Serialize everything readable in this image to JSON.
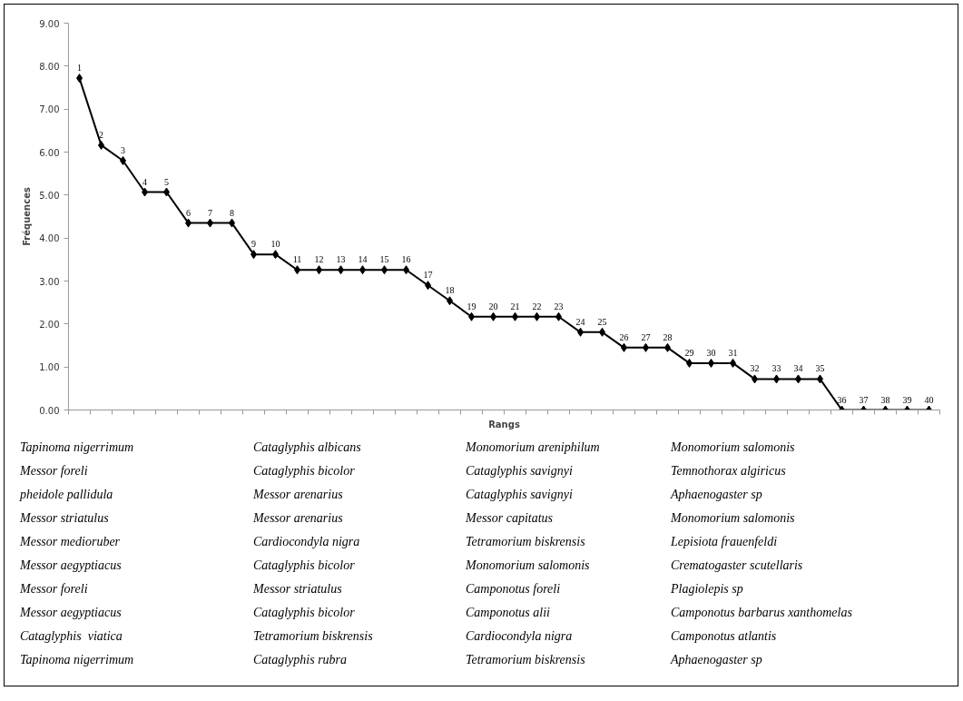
{
  "chart_data": {
    "type": "line",
    "xlabel": "Rangs",
    "ylabel": "Fréquences",
    "categories": [
      "1",
      "2",
      "3",
      "4",
      "5",
      "6",
      "7",
      "8",
      "9",
      "10",
      "11",
      "12",
      "13",
      "14",
      "15",
      "16",
      "17",
      "18",
      "19",
      "20",
      "21",
      "22",
      "23",
      "24",
      "25",
      "26",
      "27",
      "28",
      "29",
      "30",
      "31",
      "32",
      "33",
      "34",
      "35",
      "36",
      "37",
      "38",
      "39",
      "40"
    ],
    "series": [
      {
        "color": "#000000",
        "values": [
          7.72,
          6.16,
          5.8,
          5.07,
          5.07,
          4.35,
          4.35,
          4.35,
          3.62,
          3.62,
          3.26,
          3.26,
          3.26,
          3.26,
          3.26,
          3.26,
          2.9,
          2.54,
          2.17,
          2.17,
          2.17,
          2.17,
          2.17,
          1.81,
          1.81,
          1.45,
          1.45,
          1.45,
          1.09,
          1.09,
          1.09,
          0.72,
          0.72,
          0.72,
          0.72,
          0,
          0,
          0,
          0,
          0
        ],
        "name": null
      }
    ],
    "ylim": [
      0,
      9
    ],
    "yticks": [
      {
        "value": 0,
        "label": "0.00"
      },
      {
        "value": 1,
        "label": "1.00"
      },
      {
        "value": 2,
        "label": "2.00"
      },
      {
        "value": 3,
        "label": "3.00"
      },
      {
        "value": 4,
        "label": "4.00"
      },
      {
        "value": 5,
        "label": "5.00"
      },
      {
        "value": 6,
        "label": "6.00"
      },
      {
        "value": 7,
        "label": "7.00"
      },
      {
        "value": 8,
        "label": "8.00"
      },
      {
        "value": 9,
        "label": "9.00"
      }
    ],
    "tick_labels": "y",
    "grid": false,
    "marker": "diamond",
    "line_style": "solid",
    "annotations": [
      "Tapinoma nigerrimum",
      "Messor foreli",
      "pheidole pallidula",
      "Messor striatulus",
      "Messor medioruber",
      "Messor aegyptiacus",
      "Messor foreli",
      "Messor aegyptiacus",
      "Cataglyphis  viatica",
      "Tapinoma nigerrimum",
      "Cataglyphis albicans",
      "Cataglyphis bicolor",
      "Messor arenarius",
      "Messor arenarius",
      "Cardiocondyla nigra",
      "Cataglyphis bicolor",
      "Messor striatulus",
      "Cataglyphis bicolor",
      "Tetramorium biskrensis",
      "Cataglyphis rubra",
      "Monomorium areniphilum",
      "Cataglyphis savignyi",
      "Cataglyphis savignyi",
      "Messor capitatus",
      "Tetramorium biskrensis",
      "Monomorium salomonis",
      "Camponotus foreli",
      "Camponotus alii",
      "Cardiocondyla nigra",
      "Tetramorium biskrensis",
      "Monomorium salomonis",
      "Temnothorax algiricus",
      "Aphaenogaster sp",
      "Monomorium salomonis",
      "Lepisiota frauenfeldi",
      "Crematogaster scutellaris",
      "Plagiolepis sp",
      "Camponotus barbarus xanthomelas",
      "Camponotus atlantis",
      "Aphaenogaster sp"
    ]
  }
}
